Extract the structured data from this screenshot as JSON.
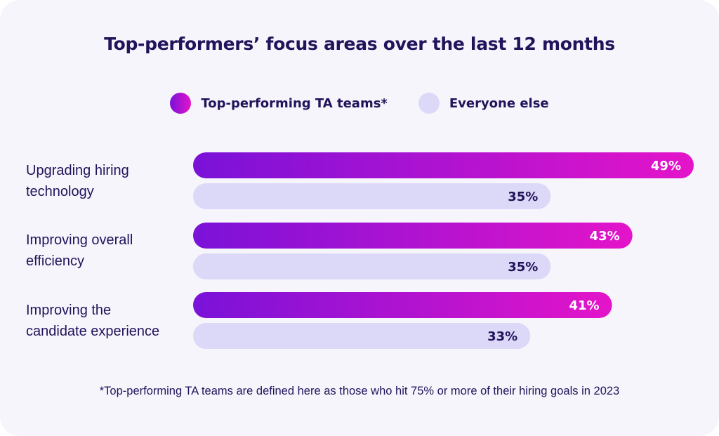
{
  "colors": {
    "top_start": "#7a12d8",
    "top_end": "#e414c9",
    "rest": "#dcd8f8",
    "text": "#22135a",
    "top_label": "#ffffff",
    "rest_label": "#22135a"
  },
  "chart_data": {
    "type": "bar",
    "orientation": "horizontal",
    "title": "Top-performers’ focus areas over the last 12 months",
    "categories": [
      "Upgrading hiring technology",
      "Improving overall efficiency",
      "Improving the candidate experience"
    ],
    "category_lines": [
      [
        "Upgrading hiring",
        "technology"
      ],
      [
        "Improving overall",
        "efficiency"
      ],
      [
        "Improving the",
        "candidate experience"
      ]
    ],
    "series": [
      {
        "name": "Top-performing TA teams*",
        "values": [
          49,
          43,
          41
        ],
        "labels": [
          "49%",
          "43%",
          "41%"
        ]
      },
      {
        "name": "Everyone else",
        "values": [
          35,
          35,
          33
        ],
        "labels": [
          "35%",
          "35%",
          "33%"
        ]
      }
    ],
    "unit": "%",
    "xlim": [
      0,
      49
    ],
    "legend": "top-center",
    "grid": false
  },
  "footnote": "*Top-performing TA teams are defined here as those who hit 75% or more of their hiring goals in 2023"
}
